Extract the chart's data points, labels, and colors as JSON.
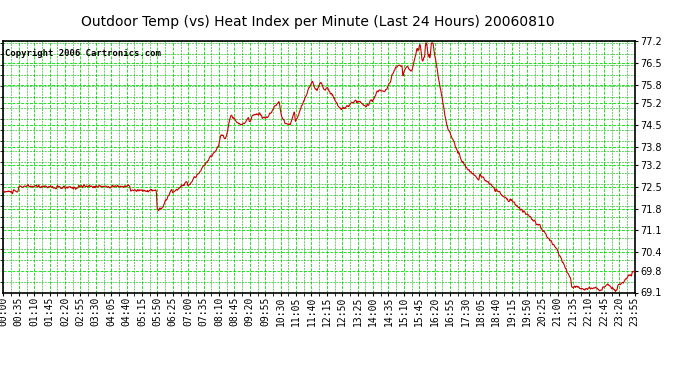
{
  "title": "Outdoor Temp (vs) Heat Index per Minute (Last 24 Hours) 20060810",
  "copyright": "Copyright 2006 Cartronics.com",
  "y_min": 69.1,
  "y_max": 77.2,
  "y_ticks": [
    69.1,
    69.8,
    70.4,
    71.1,
    71.8,
    72.5,
    73.2,
    73.8,
    74.5,
    75.2,
    75.8,
    76.5,
    77.2
  ],
  "line_color": "#cc0000",
  "bg_color": "#ffffff",
  "plot_bg_color": "#ffffff",
  "grid_major_color": "#00dd00",
  "grid_minor_color": "#00aa00",
  "title_fontsize": 10,
  "copyright_fontsize": 6.5,
  "tick_fontsize": 7,
  "x_labels": [
    "00:00",
    "00:35",
    "01:10",
    "01:45",
    "02:20",
    "02:55",
    "03:30",
    "04:05",
    "04:40",
    "05:15",
    "05:50",
    "06:25",
    "07:00",
    "07:35",
    "08:10",
    "08:45",
    "09:20",
    "09:55",
    "10:30",
    "11:05",
    "11:40",
    "12:15",
    "12:50",
    "13:25",
    "14:00",
    "14:35",
    "15:10",
    "15:45",
    "16:20",
    "16:55",
    "17:30",
    "18:05",
    "18:40",
    "19:15",
    "19:50",
    "20:25",
    "21:00",
    "21:35",
    "22:10",
    "22:45",
    "23:20",
    "23:55"
  ]
}
